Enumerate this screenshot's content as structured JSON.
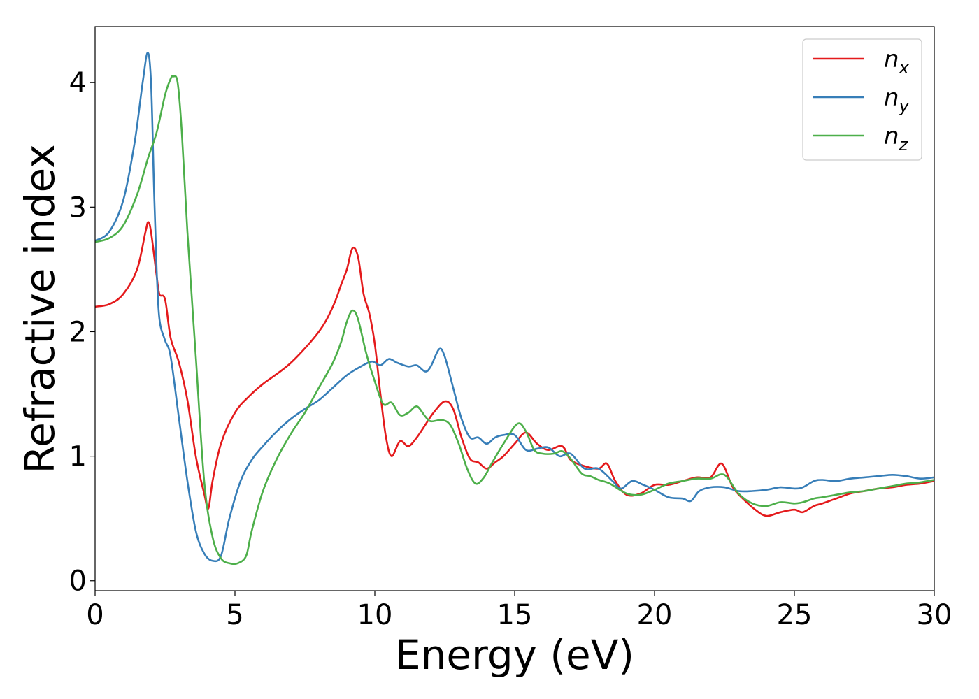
{
  "chart_data": {
    "type": "line",
    "xlabel": "Energy (eV)",
    "ylabel": "Refractive index",
    "xlim": [
      0,
      30
    ],
    "ylim": [
      -0.08,
      4.45
    ],
    "x_ticks": [
      "0",
      "5",
      "10",
      "15",
      "20",
      "25",
      "30"
    ],
    "y_ticks": [
      "0",
      "1",
      "2",
      "3",
      "4"
    ],
    "grid": false,
    "legend_position": "top-right",
    "colors": {
      "n_x": "#e41a1c",
      "n_y": "#377eb8",
      "n_z": "#4daf4a"
    },
    "series": [
      {
        "name": "n_x",
        "legend": {
          "base": "n",
          "sub": "x"
        },
        "color": "#e41a1c",
        "points": [
          [
            0,
            2.2
          ],
          [
            0.5,
            2.22
          ],
          [
            1.0,
            2.3
          ],
          [
            1.5,
            2.5
          ],
          [
            1.8,
            2.8
          ],
          [
            1.9,
            2.88
          ],
          [
            2.0,
            2.8
          ],
          [
            2.2,
            2.45
          ],
          [
            2.3,
            2.3
          ],
          [
            2.5,
            2.26
          ],
          [
            2.7,
            1.95
          ],
          [
            3.0,
            1.75
          ],
          [
            3.3,
            1.45
          ],
          [
            3.6,
            1.0
          ],
          [
            3.9,
            0.7
          ],
          [
            4.05,
            0.58
          ],
          [
            4.2,
            0.8
          ],
          [
            4.5,
            1.1
          ],
          [
            5.0,
            1.35
          ],
          [
            5.5,
            1.48
          ],
          [
            6.0,
            1.58
          ],
          [
            7.0,
            1.75
          ],
          [
            8.0,
            2.0
          ],
          [
            8.5,
            2.2
          ],
          [
            8.8,
            2.38
          ],
          [
            9.0,
            2.5
          ],
          [
            9.2,
            2.67
          ],
          [
            9.4,
            2.6
          ],
          [
            9.6,
            2.3
          ],
          [
            9.8,
            2.15
          ],
          [
            10.0,
            1.9
          ],
          [
            10.2,
            1.5
          ],
          [
            10.4,
            1.15
          ],
          [
            10.6,
            1.0
          ],
          [
            10.9,
            1.12
          ],
          [
            11.2,
            1.08
          ],
          [
            11.5,
            1.15
          ],
          [
            11.8,
            1.25
          ],
          [
            12.1,
            1.35
          ],
          [
            12.5,
            1.44
          ],
          [
            12.8,
            1.38
          ],
          [
            13.1,
            1.15
          ],
          [
            13.4,
            0.98
          ],
          [
            13.7,
            0.95
          ],
          [
            14.0,
            0.9
          ],
          [
            14.3,
            0.95
          ],
          [
            14.6,
            1.0
          ],
          [
            15.0,
            1.1
          ],
          [
            15.4,
            1.19
          ],
          [
            15.8,
            1.1
          ],
          [
            16.2,
            1.05
          ],
          [
            16.7,
            1.08
          ],
          [
            17.0,
            0.97
          ],
          [
            17.5,
            0.92
          ],
          [
            18.0,
            0.9
          ],
          [
            18.3,
            0.94
          ],
          [
            18.6,
            0.8
          ],
          [
            19.0,
            0.69
          ],
          [
            19.5,
            0.7
          ],
          [
            20.0,
            0.77
          ],
          [
            20.5,
            0.77
          ],
          [
            21.0,
            0.8
          ],
          [
            21.5,
            0.83
          ],
          [
            22.0,
            0.83
          ],
          [
            22.4,
            0.94
          ],
          [
            22.8,
            0.75
          ],
          [
            23.2,
            0.65
          ],
          [
            23.6,
            0.57
          ],
          [
            24.0,
            0.52
          ],
          [
            24.5,
            0.55
          ],
          [
            25.0,
            0.57
          ],
          [
            25.3,
            0.55
          ],
          [
            25.7,
            0.6
          ],
          [
            26.0,
            0.62
          ],
          [
            26.5,
            0.66
          ],
          [
            27.0,
            0.7
          ],
          [
            27.5,
            0.72
          ],
          [
            28.0,
            0.74
          ],
          [
            28.5,
            0.75
          ],
          [
            29.0,
            0.77
          ],
          [
            29.5,
            0.78
          ],
          [
            30.0,
            0.8
          ]
        ]
      },
      {
        "name": "n_y",
        "legend": {
          "base": "n",
          "sub": "y"
        },
        "color": "#377eb8",
        "points": [
          [
            0,
            2.73
          ],
          [
            0.5,
            2.8
          ],
          [
            1.0,
            3.05
          ],
          [
            1.4,
            3.5
          ],
          [
            1.7,
            4.0
          ],
          [
            1.88,
            4.24
          ],
          [
            2.0,
            4.0
          ],
          [
            2.1,
            3.2
          ],
          [
            2.2,
            2.5
          ],
          [
            2.3,
            2.1
          ],
          [
            2.5,
            1.93
          ],
          [
            2.7,
            1.8
          ],
          [
            3.0,
            1.3
          ],
          [
            3.3,
            0.8
          ],
          [
            3.6,
            0.4
          ],
          [
            3.9,
            0.22
          ],
          [
            4.2,
            0.16
          ],
          [
            4.5,
            0.2
          ],
          [
            4.8,
            0.5
          ],
          [
            5.2,
            0.8
          ],
          [
            5.6,
            0.97
          ],
          [
            6.0,
            1.08
          ],
          [
            6.5,
            1.2
          ],
          [
            7.0,
            1.3
          ],
          [
            7.5,
            1.38
          ],
          [
            8.0,
            1.45
          ],
          [
            8.5,
            1.55
          ],
          [
            9.0,
            1.65
          ],
          [
            9.5,
            1.72
          ],
          [
            9.9,
            1.76
          ],
          [
            10.2,
            1.73
          ],
          [
            10.5,
            1.78
          ],
          [
            10.8,
            1.75
          ],
          [
            11.2,
            1.72
          ],
          [
            11.5,
            1.73
          ],
          [
            11.8,
            1.68
          ],
          [
            12.0,
            1.72
          ],
          [
            12.3,
            1.86
          ],
          [
            12.5,
            1.8
          ],
          [
            12.8,
            1.55
          ],
          [
            13.1,
            1.3
          ],
          [
            13.4,
            1.15
          ],
          [
            13.7,
            1.15
          ],
          [
            14.0,
            1.1
          ],
          [
            14.3,
            1.15
          ],
          [
            14.6,
            1.17
          ],
          [
            15.0,
            1.17
          ],
          [
            15.4,
            1.05
          ],
          [
            15.8,
            1.06
          ],
          [
            16.2,
            1.07
          ],
          [
            16.6,
            1.0
          ],
          [
            17.0,
            1.02
          ],
          [
            17.5,
            0.9
          ],
          [
            18.0,
            0.9
          ],
          [
            18.5,
            0.8
          ],
          [
            18.8,
            0.74
          ],
          [
            19.2,
            0.8
          ],
          [
            19.6,
            0.77
          ],
          [
            20.0,
            0.73
          ],
          [
            20.5,
            0.67
          ],
          [
            21.0,
            0.66
          ],
          [
            21.3,
            0.64
          ],
          [
            21.6,
            0.72
          ],
          [
            22.0,
            0.75
          ],
          [
            22.5,
            0.75
          ],
          [
            23.0,
            0.72
          ],
          [
            23.5,
            0.72
          ],
          [
            24.0,
            0.73
          ],
          [
            24.5,
            0.75
          ],
          [
            25.0,
            0.74
          ],
          [
            25.3,
            0.75
          ],
          [
            25.7,
            0.8
          ],
          [
            26.0,
            0.81
          ],
          [
            26.5,
            0.8
          ],
          [
            27.0,
            0.82
          ],
          [
            27.5,
            0.83
          ],
          [
            28.0,
            0.84
          ],
          [
            28.5,
            0.85
          ],
          [
            29.0,
            0.84
          ],
          [
            29.5,
            0.82
          ],
          [
            30.0,
            0.83
          ]
        ]
      },
      {
        "name": "n_z",
        "legend": {
          "base": "n",
          "sub": "z"
        },
        "color": "#4daf4a",
        "points": [
          [
            0,
            2.72
          ],
          [
            0.5,
            2.75
          ],
          [
            1.0,
            2.85
          ],
          [
            1.5,
            3.1
          ],
          [
            1.9,
            3.4
          ],
          [
            2.2,
            3.6
          ],
          [
            2.5,
            3.9
          ],
          [
            2.7,
            4.03
          ],
          [
            2.8,
            4.05
          ],
          [
            2.95,
            4.0
          ],
          [
            3.1,
            3.6
          ],
          [
            3.3,
            2.8
          ],
          [
            3.6,
            1.8
          ],
          [
            3.9,
            0.8
          ],
          [
            4.2,
            0.35
          ],
          [
            4.5,
            0.18
          ],
          [
            4.8,
            0.14
          ],
          [
            5.1,
            0.14
          ],
          [
            5.4,
            0.2
          ],
          [
            5.6,
            0.4
          ],
          [
            6.0,
            0.72
          ],
          [
            6.5,
            0.98
          ],
          [
            7.0,
            1.18
          ],
          [
            7.5,
            1.35
          ],
          [
            8.0,
            1.55
          ],
          [
            8.5,
            1.75
          ],
          [
            8.8,
            1.92
          ],
          [
            9.0,
            2.08
          ],
          [
            9.2,
            2.17
          ],
          [
            9.4,
            2.1
          ],
          [
            9.7,
            1.82
          ],
          [
            10.0,
            1.6
          ],
          [
            10.3,
            1.42
          ],
          [
            10.6,
            1.43
          ],
          [
            10.9,
            1.33
          ],
          [
            11.2,
            1.35
          ],
          [
            11.5,
            1.4
          ],
          [
            11.8,
            1.32
          ],
          [
            12.0,
            1.28
          ],
          [
            12.4,
            1.29
          ],
          [
            12.7,
            1.25
          ],
          [
            13.0,
            1.1
          ],
          [
            13.3,
            0.9
          ],
          [
            13.6,
            0.78
          ],
          [
            13.9,
            0.83
          ],
          [
            14.2,
            0.95
          ],
          [
            14.6,
            1.1
          ],
          [
            15.1,
            1.26
          ],
          [
            15.4,
            1.2
          ],
          [
            15.7,
            1.05
          ],
          [
            16.0,
            1.02
          ],
          [
            16.4,
            1.02
          ],
          [
            16.7,
            1.04
          ],
          [
            17.0,
            0.98
          ],
          [
            17.4,
            0.86
          ],
          [
            17.7,
            0.84
          ],
          [
            18.0,
            0.81
          ],
          [
            18.4,
            0.78
          ],
          [
            19.0,
            0.7
          ],
          [
            19.5,
            0.69
          ],
          [
            20.0,
            0.73
          ],
          [
            20.5,
            0.78
          ],
          [
            21.0,
            0.8
          ],
          [
            21.5,
            0.82
          ],
          [
            22.0,
            0.82
          ],
          [
            22.5,
            0.85
          ],
          [
            23.0,
            0.7
          ],
          [
            23.5,
            0.62
          ],
          [
            24.0,
            0.6
          ],
          [
            24.5,
            0.63
          ],
          [
            25.0,
            0.62
          ],
          [
            25.3,
            0.63
          ],
          [
            25.7,
            0.66
          ],
          [
            26.0,
            0.67
          ],
          [
            26.5,
            0.69
          ],
          [
            27.0,
            0.71
          ],
          [
            27.5,
            0.72
          ],
          [
            28.0,
            0.74
          ],
          [
            28.5,
            0.76
          ],
          [
            29.0,
            0.78
          ],
          [
            29.5,
            0.79
          ],
          [
            30.0,
            0.81
          ]
        ]
      }
    ]
  }
}
